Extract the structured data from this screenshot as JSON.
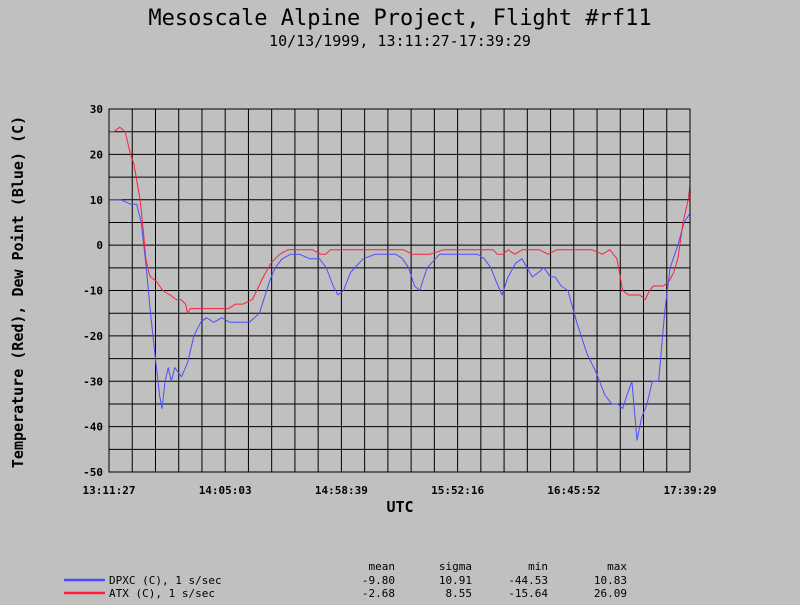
{
  "chart_data": {
    "type": "line",
    "title": "Mesoscale Alpine Project, Flight #rf11",
    "subtitle": "10/13/1999, 13:11:27-17:39:29",
    "xlabel": "UTC",
    "ylabel": "Temperature (Red), Dew Point (Blue) (C)",
    "xlim": [
      "13:11:27",
      "17:39:29"
    ],
    "ylim": [
      -50,
      30
    ],
    "grid": true,
    "x_tick_labels": [
      "13:11:27",
      "14:05:03",
      "14:58:39",
      "15:52:16",
      "16:45:52",
      "17:39:29"
    ],
    "y_tick_labels": [
      "30",
      "20",
      "10",
      "0",
      "-10",
      "-20",
      "-30",
      "-40",
      "-50"
    ],
    "y_ticks": [
      30,
      20,
      10,
      0,
      -10,
      -20,
      -30,
      -40,
      -50
    ],
    "series": [
      {
        "name": "DPXC (C), 1 s/sec",
        "color": "#4d4dff",
        "x": [
          "13:11:27",
          "13:16:48",
          "13:21:36",
          "13:24:13",
          "13:26:17",
          "13:28:39",
          "13:30:36",
          "13:32:50",
          "13:34:44",
          "13:35:55",
          "13:37:21",
          "13:38:46",
          "13:40:12",
          "13:41:48",
          "13:44:55",
          "13:47:41",
          "13:50:38",
          "13:53:45",
          "13:56:24",
          "13:59:49",
          "14:03:29",
          "14:07:05",
          "14:11:41",
          "14:16:13",
          "14:20:49",
          "14:25:29",
          "14:28:08",
          "14:31:21",
          "14:35:20",
          "14:39:19",
          "14:43:56",
          "14:48:32",
          "14:51:43",
          "14:54:52",
          "14:57:06",
          "14:59:39",
          "15:02:54",
          "15:08:42",
          "15:14:30",
          "15:20:19",
          "15:23:48",
          "15:26:51",
          "15:29:41",
          "15:32:22",
          "15:34:46",
          "15:38:13",
          "15:44:01",
          "15:49:49",
          "15:55:37",
          "16:01:25",
          "16:04:33",
          "16:07:38",
          "16:10:04",
          "16:12:44",
          "16:15:34",
          "16:19:02",
          "16:21:57",
          "16:24:20",
          "16:26:44",
          "16:29:32",
          "16:32:04",
          "16:35:07",
          "16:37:11",
          "16:40:04",
          "16:43:09",
          "16:47:14",
          "16:52:02",
          "16:56:06",
          "17:00:11",
          "17:03:23",
          "17:06:02",
          "17:08:27",
          "17:10:24",
          "17:12:40",
          "17:15:01",
          "17:17:09",
          "17:19:39",
          "17:22:09",
          "17:25:00",
          "17:27:46",
          "17:30:18",
          "17:33:53",
          "17:36:47",
          "17:39:29"
        ],
        "values": [
          10,
          10,
          9,
          9,
          5,
          -5,
          -15,
          -25,
          -33,
          -36,
          -30,
          -27,
          -30,
          -27,
          -29,
          -26,
          -20,
          -17,
          -16,
          -17,
          -16,
          -17,
          -17,
          -17,
          -15,
          -8,
          -5,
          -3,
          -2,
          -2,
          -3,
          -3,
          -5,
          -9,
          -11,
          -10,
          -6,
          -3,
          -2,
          -2,
          -2,
          -3,
          -5,
          -9,
          -10,
          -5,
          -2,
          -2,
          -2,
          -2,
          -3,
          -5,
          -8,
          -11,
          -7,
          -4,
          -3,
          -5,
          -7,
          -6,
          -5,
          -7,
          -7,
          -9,
          -10,
          -17,
          -24,
          -28,
          -33,
          -35,
          -35,
          -36,
          -33,
          -30,
          -43,
          -38,
          -35,
          -30,
          -30,
          -15,
          -5,
          0,
          5,
          7
        ]
      },
      {
        "name": "ATX (C), 1 s/sec",
        "color": "#ff1f3f",
        "x": [
          "13:11:27",
          "13:13:39",
          "13:16:26",
          "13:18:55",
          "13:21:21",
          "13:22:50",
          "13:23:59",
          "13:25:47",
          "13:27:20",
          "13:28:25",
          "13:29:49",
          "13:30:36",
          "13:33:22",
          "13:36:13",
          "13:39:37",
          "13:42:28",
          "13:44:37",
          "13:46:46",
          "13:47:41",
          "13:48:54",
          "13:50:38",
          "13:54:32",
          "13:58:24",
          "14:02:32",
          "14:06:36",
          "14:09:48",
          "14:13:17",
          "14:17:33",
          "14:22:38",
          "14:26:08",
          "14:28:08",
          "14:30:14",
          "14:34:05",
          "14:40:02",
          "14:45:15",
          "14:49:05",
          "14:51:28",
          "14:53:34",
          "14:55:55",
          "15:00:52",
          "15:06:07",
          "15:12:03",
          "15:18:09",
          "15:23:42",
          "15:27:19",
          "15:31:15",
          "15:35:00",
          "15:39:32",
          "15:45:56",
          "15:51:53",
          "15:57:54",
          "16:03:28",
          "16:08:39",
          "16:10:35",
          "16:13:14",
          "16:15:35",
          "16:18:35",
          "16:22:09",
          "16:26:08",
          "16:29:54",
          "16:34:00",
          "16:38:02",
          "16:42:01",
          "16:45:27",
          "16:49:21",
          "16:54:11",
          "16:59:06",
          "17:02:31",
          "17:05:46",
          "17:08:27",
          "17:11:04",
          "17:13:20",
          "17:16:20",
          "17:18:48",
          "17:20:48",
          "17:22:40",
          "17:24:55",
          "17:27:13",
          "17:29:46",
          "17:31:59",
          "17:33:53",
          "17:36:16",
          "17:38:38",
          "17:39:29"
        ],
        "values": [
          25,
          25,
          26,
          25,
          20,
          18,
          15,
          10,
          3,
          -3,
          -6,
          -7,
          -8,
          -10,
          -11,
          -12,
          -12,
          -13,
          -15,
          -14,
          -14,
          -14,
          -14,
          -14,
          -14,
          -13,
          -13,
          -12,
          -7,
          -4,
          -3,
          -2,
          -1,
          -1,
          -1,
          -2,
          -2,
          -1,
          -1,
          -1,
          -1,
          -1,
          -1,
          -1,
          -1,
          -2,
          -2,
          -2,
          -1,
          -1,
          -1,
          -1,
          -1,
          -2,
          -2,
          -1,
          -2,
          -1,
          -1,
          -1,
          -2,
          -1,
          -1,
          -1,
          -1,
          -1,
          -2,
          -1,
          -3,
          -10,
          -11,
          -11,
          -11,
          -12,
          -10,
          -9,
          -9,
          -9,
          -8,
          -6,
          -3,
          5,
          10,
          13
        ]
      }
    ],
    "stats": {
      "headers": [
        "mean",
        "sigma",
        "min",
        "max"
      ],
      "rows": [
        {
          "name": "DPXC (C), 1 s/sec",
          "color": "#4d4dff",
          "values": [
            "-9.80",
            "10.91",
            "-44.53",
            "10.83"
          ]
        },
        {
          "name": "ATX (C), 1 s/sec",
          "color": "#ff1f3f",
          "values": [
            "-2.68",
            "8.55",
            "-15.64",
            "26.09"
          ]
        }
      ]
    }
  }
}
